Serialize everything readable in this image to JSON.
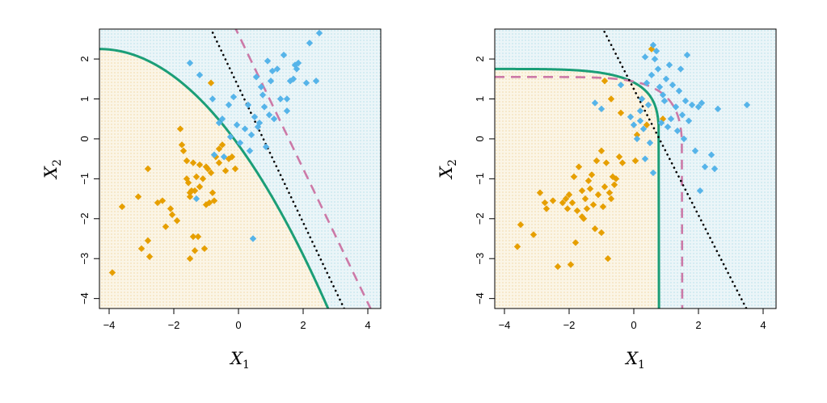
{
  "colors": {
    "class_a": "#E69F00",
    "class_b": "#56B4E9",
    "region_a_bg": "#FBF5E6",
    "region_b_bg": "#EBF5F8",
    "grid_dot_a": "#E6B85C",
    "grid_dot_b": "#7FC8DA",
    "bayes_boundary": "#000000",
    "fit_boundary": "#1B9E77",
    "model_boundary": "#CC79A7"
  },
  "chart_data": [
    {
      "type": "scatter",
      "title": "",
      "xlabel": "X",
      "xlabel_sub": "1",
      "ylabel": "X",
      "ylabel_sub": "2",
      "xlim": [
        -4.3,
        4.4
      ],
      "ylim": [
        -4.25,
        2.75
      ],
      "xticks": [
        -4,
        -2,
        0,
        2,
        4
      ],
      "yticks": [
        -4,
        -3,
        -2,
        -1,
        0,
        1,
        2
      ],
      "xtick_labels": [
        "−4",
        "−2",
        "0",
        "2",
        "4"
      ],
      "ytick_labels": [
        "−4",
        "−3",
        "−2",
        "−1",
        "0",
        "1",
        "2"
      ],
      "grid": false,
      "background_regions": "shaded by fitted class (green boundary)",
      "series": [
        {
          "class": "orange",
          "points": [
            [
              -3.9,
              -3.35
            ],
            [
              -3.6,
              -1.7
            ],
            [
              -3.1,
              -1.45
            ],
            [
              -3.0,
              -2.75
            ],
            [
              -2.8,
              -0.75
            ],
            [
              -2.8,
              -2.55
            ],
            [
              -2.75,
              -2.95
            ],
            [
              -2.5,
              -1.6
            ],
            [
              -2.35,
              -1.55
            ],
            [
              -2.25,
              -2.2
            ],
            [
              -2.1,
              -1.75
            ],
            [
              -1.9,
              -2.05
            ],
            [
              -1.8,
              0.25
            ],
            [
              -1.7,
              -0.3
            ],
            [
              -1.6,
              -0.55
            ],
            [
              -1.55,
              -1.1
            ],
            [
              -1.5,
              -1.45
            ],
            [
              -1.45,
              -1.3
            ],
            [
              -1.4,
              -2.45
            ],
            [
              -1.35,
              -2.8
            ],
            [
              -1.25,
              -2.45
            ],
            [
              -1.2,
              -0.65
            ],
            [
              -1.1,
              -1.0
            ],
            [
              -1.05,
              -2.75
            ],
            [
              -1.0,
              -1.65
            ],
            [
              -0.95,
              -0.75
            ],
            [
              -0.9,
              -1.6
            ],
            [
              -0.85,
              -0.85
            ],
            [
              -0.8,
              -1.35
            ],
            [
              -0.75,
              -1.55
            ],
            [
              -0.7,
              -0.45
            ],
            [
              -0.6,
              -0.25
            ],
            [
              -0.5,
              -0.15
            ],
            [
              -0.4,
              -0.8
            ],
            [
              -0.3,
              -0.5
            ],
            [
              -0.2,
              -0.45
            ],
            [
              -0.1,
              -0.75
            ],
            [
              -1.5,
              -1.35
            ],
            [
              -1.6,
              -1.0
            ],
            [
              -1.3,
              -0.95
            ],
            [
              -1.35,
              -1.3
            ],
            [
              -1.5,
              -3.0
            ],
            [
              -1.4,
              -0.6
            ],
            [
              -1.2,
              -1.2
            ],
            [
              -1.0,
              -0.7
            ],
            [
              -0.85,
              1.4
            ],
            [
              -0.6,
              -0.6
            ],
            [
              -1.75,
              -0.15
            ],
            [
              -2.05,
              -1.9
            ]
          ]
        },
        {
          "class": "blue",
          "points": [
            [
              -1.5,
              1.9
            ],
            [
              -1.2,
              1.6
            ],
            [
              -0.8,
              1.0
            ],
            [
              -0.6,
              0.4
            ],
            [
              -0.5,
              0.5
            ],
            [
              -0.45,
              -0.45
            ],
            [
              -0.3,
              0.85
            ],
            [
              -0.25,
              0.05
            ],
            [
              -0.15,
              1.05
            ],
            [
              -0.05,
              0.35
            ],
            [
              0.05,
              -0.1
            ],
            [
              0.2,
              0.25
            ],
            [
              0.3,
              0.85
            ],
            [
              0.4,
              0.1
            ],
            [
              0.5,
              0.55
            ],
            [
              0.55,
              1.55
            ],
            [
              0.6,
              0.3
            ],
            [
              0.65,
              0.4
            ],
            [
              0.7,
              1.3
            ],
            [
              0.75,
              1.1
            ],
            [
              0.8,
              0.8
            ],
            [
              0.85,
              -0.2
            ],
            [
              0.9,
              1.95
            ],
            [
              0.95,
              0.6
            ],
            [
              1.0,
              1.45
            ],
            [
              1.05,
              1.7
            ],
            [
              1.1,
              0.5
            ],
            [
              1.2,
              1.75
            ],
            [
              1.3,
              1.0
            ],
            [
              1.4,
              2.1
            ],
            [
              1.5,
              1.0
            ],
            [
              1.6,
              1.45
            ],
            [
              1.7,
              1.5
            ],
            [
              1.75,
              1.85
            ],
            [
              1.8,
              1.75
            ],
            [
              1.85,
              1.9
            ],
            [
              2.1,
              1.4
            ],
            [
              2.2,
              2.4
            ],
            [
              2.4,
              1.45
            ],
            [
              2.5,
              2.65
            ],
            [
              0.45,
              -2.5
            ],
            [
              -1.3,
              -1.5
            ],
            [
              -0.75,
              -0.4
            ],
            [
              0.35,
              -0.3
            ],
            [
              1.5,
              0.7
            ]
          ]
        }
      ],
      "boundaries": [
        {
          "style": "solid",
          "color": "green"
        },
        {
          "style": "dashed",
          "color": "purple"
        },
        {
          "style": "dotted",
          "color": "black"
        }
      ]
    },
    {
      "type": "scatter",
      "title": "",
      "xlabel": "X",
      "xlabel_sub": "1",
      "ylabel": "X",
      "ylabel_sub": "2",
      "xlim": [
        -4.3,
        4.4
      ],
      "ylim": [
        -4.25,
        2.75
      ],
      "xticks": [
        -4,
        -2,
        0,
        2,
        4
      ],
      "yticks": [
        -4,
        -3,
        -2,
        -1,
        0,
        1,
        2
      ],
      "xtick_labels": [
        "−4",
        "−2",
        "0",
        "2",
        "4"
      ],
      "ytick_labels": [
        "−4",
        "−3",
        "−2",
        "−1",
        "0",
        "1",
        "2"
      ],
      "grid": false,
      "background_regions": "shaded by fitted class (green boundary)",
      "series": [
        {
          "class": "orange",
          "points": [
            [
              -3.6,
              -2.7
            ],
            [
              -3.5,
              -2.15
            ],
            [
              -3.1,
              -2.4
            ],
            [
              -2.9,
              -1.35
            ],
            [
              -2.75,
              -1.6
            ],
            [
              -2.7,
              -1.75
            ],
            [
              -2.5,
              -1.55
            ],
            [
              -2.35,
              -3.2
            ],
            [
              -2.2,
              -1.6
            ],
            [
              -2.1,
              -1.5
            ],
            [
              -2.0,
              -1.4
            ],
            [
              -1.95,
              -3.15
            ],
            [
              -1.9,
              -1.6
            ],
            [
              -1.85,
              -0.95
            ],
            [
              -1.8,
              -2.6
            ],
            [
              -1.75,
              -1.8
            ],
            [
              -1.7,
              -0.7
            ],
            [
              -1.6,
              -1.3
            ],
            [
              -1.55,
              -2.0
            ],
            [
              -1.5,
              -1.5
            ],
            [
              -1.45,
              -1.75
            ],
            [
              -1.4,
              -1.05
            ],
            [
              -1.35,
              -1.25
            ],
            [
              -1.3,
              -0.9
            ],
            [
              -1.25,
              -1.65
            ],
            [
              -1.2,
              -2.25
            ],
            [
              -1.15,
              -0.55
            ],
            [
              -1.1,
              -1.4
            ],
            [
              -1.0,
              -2.35
            ],
            [
              -0.95,
              -1.7
            ],
            [
              -0.9,
              -1.2
            ],
            [
              -0.85,
              -0.6
            ],
            [
              -0.8,
              -3.0
            ],
            [
              -0.75,
              -1.35
            ],
            [
              -0.7,
              -1.5
            ],
            [
              -0.65,
              -0.95
            ],
            [
              -0.6,
              -1.15
            ],
            [
              -0.55,
              -1.0
            ],
            [
              -0.45,
              -0.45
            ],
            [
              -0.35,
              -0.6
            ],
            [
              -1.0,
              -0.3
            ],
            [
              -1.6,
              -1.95
            ],
            [
              -0.9,
              1.45
            ],
            [
              -0.7,
              1.0
            ],
            [
              -0.4,
              0.65
            ],
            [
              0.05,
              -0.55
            ],
            [
              0.1,
              0.1
            ],
            [
              0.4,
              0.35
            ],
            [
              0.55,
              2.25
            ],
            [
              0.9,
              0.5
            ],
            [
              -2.05,
              -1.75
            ]
          ]
        },
        {
          "class": "blue",
          "points": [
            [
              -1.2,
              0.9
            ],
            [
              -1.0,
              0.75
            ],
            [
              -0.4,
              1.35
            ],
            [
              -0.1,
              0.55
            ],
            [
              0.0,
              0.35
            ],
            [
              0.1,
              0.0
            ],
            [
              0.2,
              0.7
            ],
            [
              0.25,
              1.0
            ],
            [
              0.3,
              0.25
            ],
            [
              0.35,
              2.05
            ],
            [
              0.4,
              1.4
            ],
            [
              0.45,
              0.85
            ],
            [
              0.5,
              -0.1
            ],
            [
              0.55,
              1.6
            ],
            [
              0.6,
              2.35
            ],
            [
              0.65,
              2.0
            ],
            [
              0.7,
              2.2
            ],
            [
              0.75,
              1.75
            ],
            [
              0.8,
              1.3
            ],
            [
              0.85,
              0.4
            ],
            [
              0.9,
              1.1
            ],
            [
              0.95,
              0.95
            ],
            [
              1.0,
              1.5
            ],
            [
              1.05,
              0.3
            ],
            [
              1.1,
              1.85
            ],
            [
              1.15,
              0.5
            ],
            [
              1.2,
              1.35
            ],
            [
              1.3,
              0.8
            ],
            [
              1.35,
              0.2
            ],
            [
              1.4,
              1.2
            ],
            [
              1.45,
              1.75
            ],
            [
              1.5,
              0.6
            ],
            [
              1.55,
              0.0
            ],
            [
              1.6,
              0.95
            ],
            [
              1.65,
              2.1
            ],
            [
              1.7,
              0.45
            ],
            [
              1.8,
              0.85
            ],
            [
              1.9,
              -0.3
            ],
            [
              2.0,
              0.8
            ],
            [
              2.05,
              -1.3
            ],
            [
              2.1,
              0.9
            ],
            [
              2.2,
              -0.7
            ],
            [
              2.4,
              -0.4
            ],
            [
              2.5,
              -0.75
            ],
            [
              2.6,
              0.75
            ],
            [
              3.5,
              0.85
            ],
            [
              0.6,
              -0.85
            ],
            [
              0.35,
              -0.5
            ],
            [
              0.2,
              0.45
            ]
          ]
        }
      ],
      "boundaries": [
        {
          "style": "solid",
          "color": "green"
        },
        {
          "style": "dashed",
          "color": "purple"
        },
        {
          "style": "dotted",
          "color": "black"
        }
      ]
    }
  ]
}
